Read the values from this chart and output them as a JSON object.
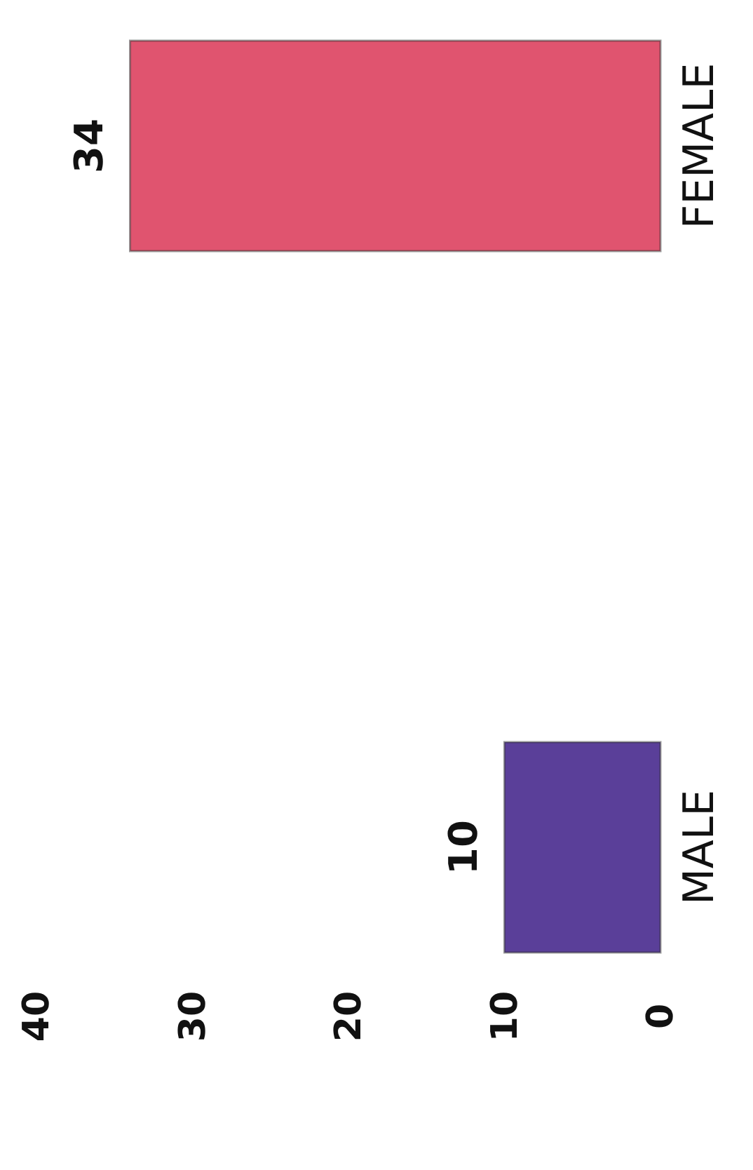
{
  "chart_data": {
    "type": "bar",
    "orientation": "horizontal",
    "categories": [
      "FEMALE",
      "MALE"
    ],
    "values": [
      34,
      10
    ],
    "colors": [
      "#e0546f",
      "#5a3f99"
    ],
    "xlim": [
      40,
      0
    ],
    "xticks": [
      0,
      10,
      20,
      30,
      40
    ],
    "data_labels": true,
    "grid": false
  }
}
